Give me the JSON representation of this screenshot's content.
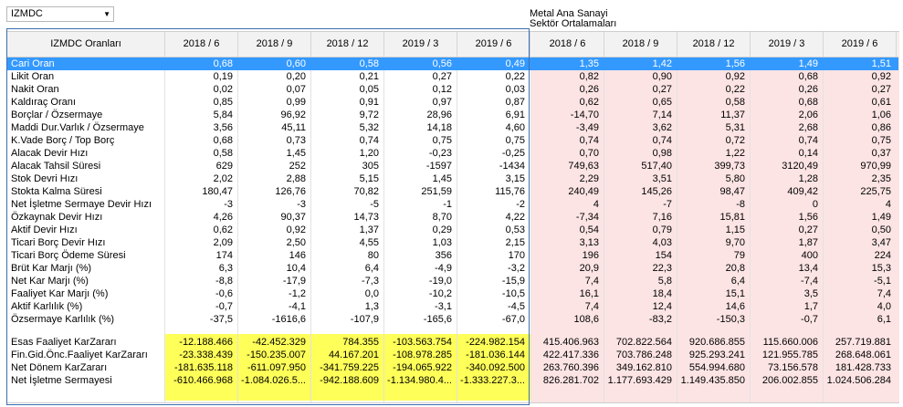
{
  "company_select": {
    "value": "IZMDC"
  },
  "sector_title": {
    "line1": "Metal Ana Sanayi",
    "line2": "Sektör Ortalamaları"
  },
  "header": {
    "label_col": "IZMDC Oranları",
    "periods": [
      "2018 / 6",
      "2018 / 9",
      "2018 / 12",
      "2019 / 3",
      "2019 / 6"
    ],
    "sector_periods": [
      "2018 / 6",
      "2018 / 9",
      "2018 / 12",
      "2019 / 3",
      "2019 / 6"
    ]
  },
  "rows": [
    {
      "label": "Cari Oran",
      "company": [
        "0,68",
        "0,60",
        "0,58",
        "0,56",
        "0,49"
      ],
      "sector": [
        "1,35",
        "1,42",
        "1,56",
        "1,49",
        "1,51"
      ]
    },
    {
      "label": "Likit Oran",
      "company": [
        "0,19",
        "0,20",
        "0,21",
        "0,27",
        "0,22"
      ],
      "sector": [
        "0,82",
        "0,90",
        "0,92",
        "0,68",
        "0,92"
      ]
    },
    {
      "label": "Nakit Oran",
      "company": [
        "0,02",
        "0,07",
        "0,05",
        "0,12",
        "0,03"
      ],
      "sector": [
        "0,26",
        "0,27",
        "0,22",
        "0,26",
        "0,27"
      ]
    },
    {
      "label": "Kaldıraç Oranı",
      "company": [
        "0,85",
        "0,99",
        "0,91",
        "0,97",
        "0,87"
      ],
      "sector": [
        "0,62",
        "0,65",
        "0,58",
        "0,68",
        "0,61"
      ]
    },
    {
      "label": "Borçlar / Özsermaye",
      "company": [
        "5,84",
        "96,92",
        "9,72",
        "28,96",
        "6,91"
      ],
      "sector": [
        "-14,70",
        "7,14",
        "11,37",
        "2,06",
        "1,06"
      ]
    },
    {
      "label": "Maddi Dur.Varlık / Özsermaye",
      "company": [
        "3,56",
        "45,11",
        "5,32",
        "14,18",
        "4,60"
      ],
      "sector": [
        "-3,49",
        "3,62",
        "5,31",
        "2,68",
        "0,86"
      ]
    },
    {
      "label": "K.Vade Borç / Top Borç",
      "company": [
        "0,68",
        "0,73",
        "0,74",
        "0,75",
        "0,75"
      ],
      "sector": [
        "0,74",
        "0,74",
        "0,72",
        "0,74",
        "0,75"
      ]
    },
    {
      "label": "Alacak Devir Hızı",
      "company": [
        "0,58",
        "1,45",
        "1,20",
        "-0,23",
        "-0,25"
      ],
      "sector": [
        "0,70",
        "0,98",
        "1,22",
        "0,14",
        "0,37"
      ]
    },
    {
      "label": "Alacak Tahsil Süresi",
      "company": [
        "629",
        "252",
        "305",
        "-1597",
        "-1434"
      ],
      "sector": [
        "749,63",
        "517,40",
        "399,73",
        "3120,49",
        "970,99"
      ]
    },
    {
      "label": "Stok Devri Hızı",
      "company": [
        "2,02",
        "2,88",
        "5,15",
        "1,45",
        "3,15"
      ],
      "sector": [
        "2,29",
        "3,51",
        "5,80",
        "1,28",
        "2,35"
      ]
    },
    {
      "label": "Stokta Kalma Süresi",
      "company": [
        "180,47",
        "126,76",
        "70,82",
        "251,59",
        "115,76"
      ],
      "sector": [
        "240,49",
        "145,26",
        "98,47",
        "409,42",
        "225,75"
      ]
    },
    {
      "label": "Net İşletme Sermaye Devir Hızı",
      "company": [
        "-3",
        "-3",
        "-5",
        "-1",
        "-2"
      ],
      "sector": [
        "4",
        "-7",
        "-8",
        "0",
        "4"
      ]
    },
    {
      "label": "Özkaynak Devir Hızı",
      "company": [
        "4,26",
        "90,37",
        "14,73",
        "8,70",
        "4,22"
      ],
      "sector": [
        "-7,34",
        "7,16",
        "15,81",
        "1,56",
        "1,49"
      ]
    },
    {
      "label": "Aktif Devir Hızı",
      "company": [
        "0,62",
        "0,92",
        "1,37",
        "0,29",
        "0,53"
      ],
      "sector": [
        "0,54",
        "0,79",
        "1,15",
        "0,27",
        "0,50"
      ]
    },
    {
      "label": "Ticari Borç Devir Hızı",
      "company": [
        "2,09",
        "2,50",
        "4,55",
        "1,03",
        "2,15"
      ],
      "sector": [
        "3,13",
        "4,03",
        "9,70",
        "1,87",
        "3,47"
      ]
    },
    {
      "label": "Ticari Borç Ödeme Süresi",
      "company": [
        "174",
        "146",
        "80",
        "356",
        "170"
      ],
      "sector": [
        "196",
        "154",
        "79",
        "400",
        "224"
      ]
    },
    {
      "label": "Brüt Kar Marjı (%)",
      "company": [
        "6,3",
        "10,4",
        "6,4",
        "-4,9",
        "-3,2"
      ],
      "sector": [
        "20,9",
        "22,3",
        "20,8",
        "13,4",
        "15,3"
      ]
    },
    {
      "label": "Net Kar Marjı (%)",
      "company": [
        "-8,8",
        "-17,9",
        "-7,3",
        "-19,0",
        "-15,9"
      ],
      "sector": [
        "7,4",
        "5,8",
        "6,4",
        "-7,4",
        "-5,1"
      ]
    },
    {
      "label": "Faaliyet Kar Marjı (%)",
      "company": [
        "-0,6",
        "-1,2",
        "0,0",
        "-10,2",
        "-10,5"
      ],
      "sector": [
        "16,1",
        "18,4",
        "15,1",
        "3,5",
        "7,4"
      ]
    },
    {
      "label": "Aktif Karlılık (%)",
      "company": [
        "-0,7",
        "-4,1",
        "1,3",
        "-3,1",
        "-4,5"
      ],
      "sector": [
        "7,4",
        "12,4",
        "14,6",
        "1,7",
        "4,0"
      ]
    },
    {
      "label": "Özsermaye Karlılık (%)",
      "company": [
        "-37,5",
        "-1616,6",
        "-107,9",
        "-165,6",
        "-67,0"
      ],
      "sector": [
        "108,6",
        "-83,2",
        "-150,3",
        "-0,7",
        "6,1"
      ]
    }
  ],
  "totals": [
    {
      "label": "Esas Faaliyet KarZararı",
      "company": [
        "-12.188.466",
        "-42.452.329",
        "784.355",
        "-103.563.754",
        "-224.982.154"
      ],
      "sector": [
        "415.406.963",
        "702.822.564",
        "920.686.855",
        "115.660.006",
        "257.719.881"
      ]
    },
    {
      "label": "Fin.Gid.Önc.Faaliyet KarZararı",
      "company": [
        "-23.338.439",
        "-150.235.007",
        "44.167.201",
        "-108.978.285",
        "-181.036.144"
      ],
      "sector": [
        "422.417.336",
        "703.786.248",
        "925.293.241",
        "121.955.785",
        "268.648.061"
      ]
    },
    {
      "label": "Net Dönem KarZararı",
      "company": [
        "-181.635.118",
        "-611.097.950",
        "-341.759.225",
        "-194.065.922",
        "-340.092.500"
      ],
      "sector": [
        "263.760.396",
        "349.162.810",
        "554.994.680",
        "73.156.578",
        "181.428.733"
      ]
    },
    {
      "label": "Net İşletme Sermayesi",
      "company": [
        "-610.466.968",
        "-1.084.026.5...",
        "-942.188.609",
        "-1.134.980.4...",
        "-1.333.227.3..."
      ],
      "sector": [
        "826.281.702",
        "1.177.693.429",
        "1.149.435.850",
        "206.002.855",
        "1.024.506.284"
      ]
    }
  ]
}
